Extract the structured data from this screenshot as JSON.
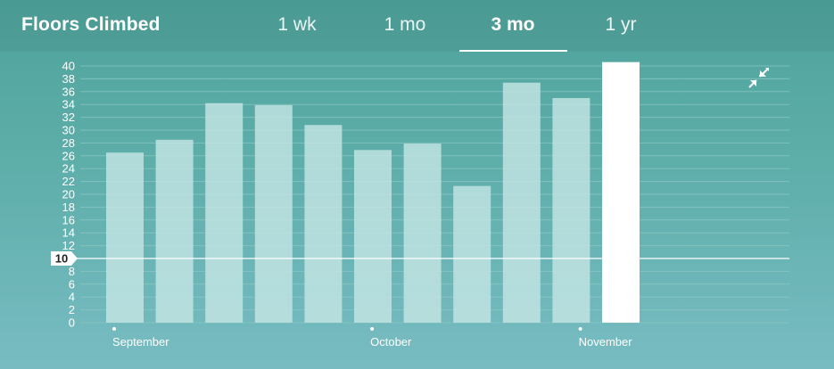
{
  "header": {
    "title": "Floors Climbed",
    "tabs": [
      {
        "label": "1 wk",
        "active": false
      },
      {
        "label": "1 mo",
        "active": false
      },
      {
        "label": "3 mo",
        "active": true
      },
      {
        "label": "1 yr",
        "active": false
      }
    ]
  },
  "controls": {
    "collapse_icon": "collapse-arrows-icon"
  },
  "colors": {
    "bar": "#c0e3e2",
    "bar_highlight": "#ffffff",
    "grid": "#8fcac6"
  },
  "chart_data": {
    "type": "bar",
    "title": "Floors Climbed",
    "xlabel": "",
    "ylabel": "",
    "ylim": [
      0,
      40
    ],
    "yticks": [
      0,
      2,
      4,
      6,
      8,
      10,
      12,
      14,
      16,
      18,
      20,
      22,
      24,
      26,
      28,
      30,
      32,
      34,
      36,
      38,
      40
    ],
    "values": [
      26.5,
      28.5,
      34.2,
      33.9,
      30.8,
      26.9,
      27.9,
      21.3,
      37.4,
      35.0,
      40.6
    ],
    "highlight_index": 10,
    "reference_line": {
      "value": 10,
      "label": "10"
    },
    "month_labels": [
      {
        "label": "September",
        "bar_index": 0
      },
      {
        "label": "October",
        "bar_index": 5.2
      },
      {
        "label": "November",
        "bar_index": 9.4
      }
    ],
    "grid": true
  }
}
